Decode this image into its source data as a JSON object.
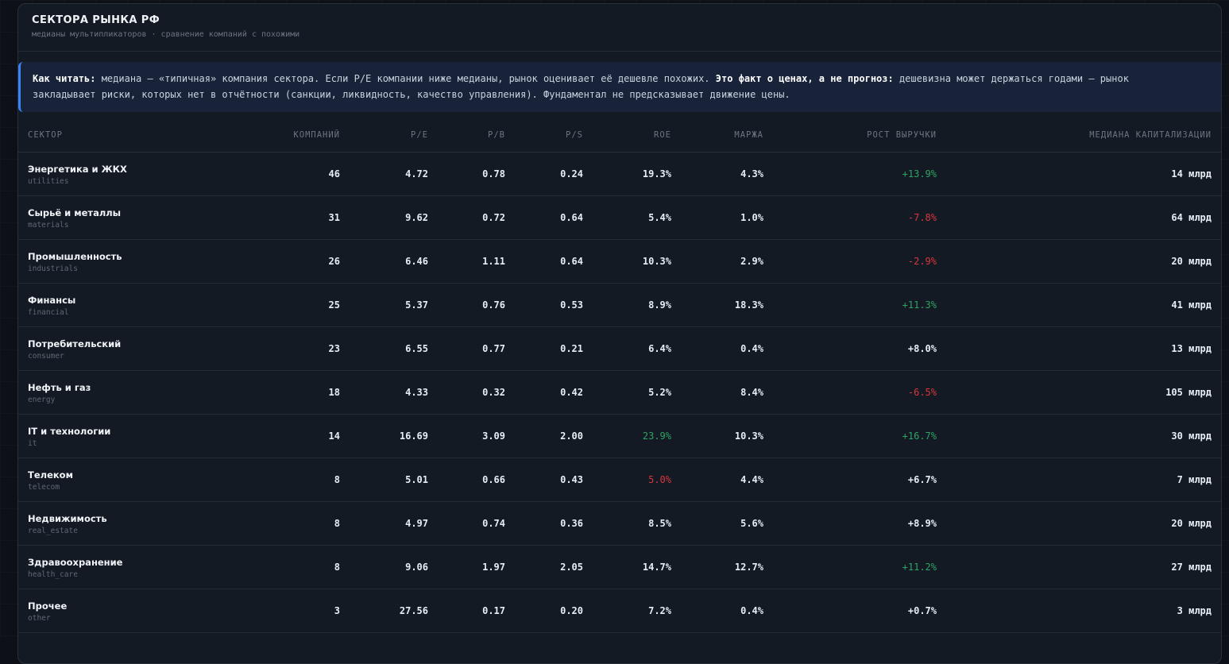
{
  "header": {
    "title": "СЕКТОРА РЫНКА РФ",
    "subtitle": "медианы мультипликаторов · сравнение компаний с похожими"
  },
  "note": {
    "lead": "Как читать:",
    "text1": " медиана — «типичная» компания сектора. Если P/E компании ниже медианы, рынок оценивает её дешевле похожих. ",
    "emphasis": "Это факт о ценах, а не прогноз:",
    "text2": " дешевизна может держаться годами — рынок закладывает риски, которых нет в отчётности (санкции, ликвидность, качество управления). Фундаментал не предсказывает движение цены."
  },
  "colors": {
    "positive": "#2ea363",
    "negative": "#d9363e",
    "accent": "#3b82f6"
  },
  "table": {
    "columns": [
      "СЕКТОР",
      "КОМПАНИЙ",
      "P/E",
      "P/B",
      "P/S",
      "ROE",
      "МАРЖА",
      "РОСТ ВЫРУЧКИ",
      "МЕДИАНА КАПИТАЛИЗАЦИИ"
    ],
    "rows": [
      {
        "name": "Энергетика и ЖКХ",
        "code": "utilities",
        "count": "46",
        "pe": "4.72",
        "pb": "0.78",
        "ps": "0.24",
        "roe": "19.3%",
        "margin": "4.3%",
        "growth": "+13.9%",
        "cap": "14 млрд",
        "roe_state": "neutral",
        "growth_state": "pos"
      },
      {
        "name": "Сырьё и металлы",
        "code": "materials",
        "count": "31",
        "pe": "9.62",
        "pb": "0.72",
        "ps": "0.64",
        "roe": "5.4%",
        "margin": "1.0%",
        "growth": "-7.8%",
        "cap": "64 млрд",
        "roe_state": "neutral",
        "growth_state": "neg"
      },
      {
        "name": "Промышленность",
        "code": "industrials",
        "count": "26",
        "pe": "6.46",
        "pb": "1.11",
        "ps": "0.64",
        "roe": "10.3%",
        "margin": "2.9%",
        "growth": "-2.9%",
        "cap": "20 млрд",
        "roe_state": "neutral",
        "growth_state": "neg"
      },
      {
        "name": "Финансы",
        "code": "financial",
        "count": "25",
        "pe": "5.37",
        "pb": "0.76",
        "ps": "0.53",
        "roe": "8.9%",
        "margin": "18.3%",
        "growth": "+11.3%",
        "cap": "41 млрд",
        "roe_state": "neutral",
        "growth_state": "pos"
      },
      {
        "name": "Потребительский",
        "code": "consumer",
        "count": "23",
        "pe": "6.55",
        "pb": "0.77",
        "ps": "0.21",
        "roe": "6.4%",
        "margin": "0.4%",
        "growth": "+8.0%",
        "cap": "13 млрд",
        "roe_state": "neutral",
        "growth_state": "neutral"
      },
      {
        "name": "Нефть и газ",
        "code": "energy",
        "count": "18",
        "pe": "4.33",
        "pb": "0.32",
        "ps": "0.42",
        "roe": "5.2%",
        "margin": "8.4%",
        "growth": "-6.5%",
        "cap": "105 млрд",
        "roe_state": "neutral",
        "growth_state": "neg"
      },
      {
        "name": "IT и технологии",
        "code": "it",
        "count": "14",
        "pe": "16.69",
        "pb": "3.09",
        "ps": "2.00",
        "roe": "23.9%",
        "margin": "10.3%",
        "growth": "+16.7%",
        "cap": "30 млрд",
        "roe_state": "pos",
        "growth_state": "pos"
      },
      {
        "name": "Телеком",
        "code": "telecom",
        "count": "8",
        "pe": "5.01",
        "pb": "0.66",
        "ps": "0.43",
        "roe": "5.0%",
        "margin": "4.4%",
        "growth": "+6.7%",
        "cap": "7 млрд",
        "roe_state": "neg",
        "growth_state": "neutral"
      },
      {
        "name": "Недвижимость",
        "code": "real_estate",
        "count": "8",
        "pe": "4.97",
        "pb": "0.74",
        "ps": "0.36",
        "roe": "8.5%",
        "margin": "5.6%",
        "growth": "+8.9%",
        "cap": "20 млрд",
        "roe_state": "neutral",
        "growth_state": "neutral"
      },
      {
        "name": "Здравоохранение",
        "code": "health_care",
        "count": "8",
        "pe": "9.06",
        "pb": "1.97",
        "ps": "2.05",
        "roe": "14.7%",
        "margin": "12.7%",
        "growth": "+11.2%",
        "cap": "27 млрд",
        "roe_state": "neutral",
        "growth_state": "pos"
      },
      {
        "name": "Прочее",
        "code": "other",
        "count": "3",
        "pe": "27.56",
        "pb": "0.17",
        "ps": "0.20",
        "roe": "7.2%",
        "margin": "0.4%",
        "growth": "+0.7%",
        "cap": "3 млрд",
        "roe_state": "neutral",
        "growth_state": "neutral"
      }
    ]
  }
}
